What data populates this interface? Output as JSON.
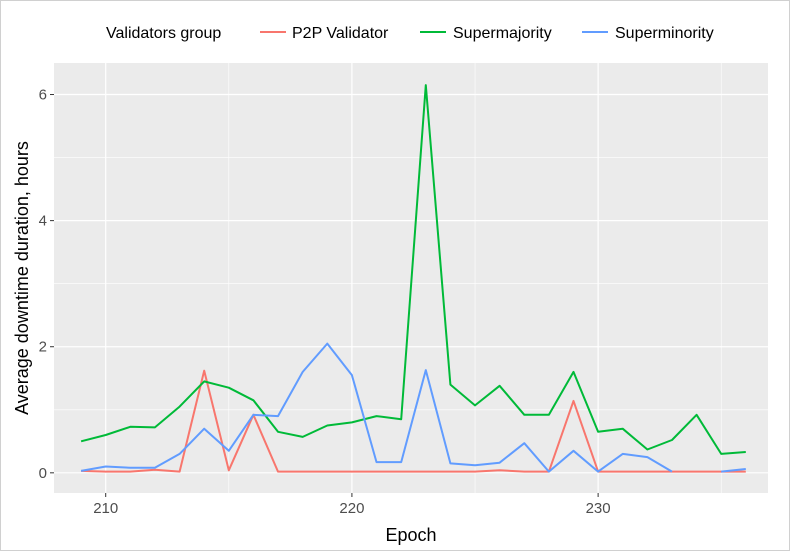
{
  "chart_data": {
    "type": "line",
    "xlabel": "Epoch",
    "ylabel": "Average downtime duration, hours",
    "legend_title": "Validators group",
    "legend_position": "top",
    "grid": true,
    "panel_background": "#ebebeb",
    "xlim": [
      207.9,
      236.9
    ],
    "ylim": [
      -0.32,
      6.5
    ],
    "x_ticks": [
      210,
      220,
      230
    ],
    "y_ticks": [
      0,
      2,
      4,
      6
    ],
    "x_tick_labels": [
      "210",
      "220",
      "230"
    ],
    "y_tick_labels": [
      "0",
      "2",
      "4",
      "6"
    ],
    "series": [
      {
        "name": "P2P Validator",
        "color": "#f8766d",
        "points": [
          [
            209,
            0.03
          ],
          [
            210,
            0.02
          ],
          [
            211,
            0.02
          ],
          [
            212,
            0.05
          ],
          [
            213,
            0.02
          ],
          [
            214,
            1.62
          ],
          [
            215,
            0.04
          ],
          [
            216,
            0.92
          ],
          [
            217,
            0.02
          ],
          [
            218,
            0.02
          ],
          [
            219,
            0.02
          ],
          [
            220,
            0.02
          ],
          [
            221,
            0.02
          ],
          [
            222,
            0.02
          ],
          [
            223,
            0.02
          ],
          [
            224,
            0.02
          ],
          [
            225,
            0.02
          ],
          [
            226,
            0.04
          ],
          [
            227,
            0.02
          ],
          [
            228,
            0.02
          ],
          [
            229,
            1.14
          ],
          [
            230,
            0.02
          ],
          [
            231,
            0.02
          ],
          [
            232,
            0.02
          ],
          [
            233,
            0.02
          ],
          [
            234,
            0.02
          ],
          [
            235,
            0.02
          ],
          [
            236,
            0.02
          ]
        ]
      },
      {
        "name": "Supermajority",
        "color": "#00ba38",
        "points": [
          [
            209,
            0.5
          ],
          [
            210,
            0.6
          ],
          [
            211,
            0.73
          ],
          [
            212,
            0.72
          ],
          [
            213,
            1.05
          ],
          [
            214,
            1.45
          ],
          [
            215,
            1.35
          ],
          [
            216,
            1.15
          ],
          [
            217,
            0.65
          ],
          [
            218,
            0.57
          ],
          [
            219,
            0.75
          ],
          [
            220,
            0.8
          ],
          [
            221,
            0.9
          ],
          [
            222,
            0.85
          ],
          [
            223,
            6.15
          ],
          [
            224,
            1.4
          ],
          [
            225,
            1.07
          ],
          [
            226,
            1.38
          ],
          [
            227,
            0.92
          ],
          [
            228,
            0.92
          ],
          [
            229,
            1.6
          ],
          [
            230,
            0.65
          ],
          [
            231,
            0.7
          ],
          [
            232,
            0.37
          ],
          [
            233,
            0.52
          ],
          [
            234,
            0.92
          ],
          [
            235,
            0.3
          ],
          [
            236,
            0.33
          ]
        ]
      },
      {
        "name": "Superminority",
        "color": "#619cff",
        "points": [
          [
            209,
            0.03
          ],
          [
            210,
            0.1
          ],
          [
            211,
            0.08
          ],
          [
            212,
            0.08
          ],
          [
            213,
            0.3
          ],
          [
            214,
            0.7
          ],
          [
            215,
            0.35
          ],
          [
            216,
            0.92
          ],
          [
            217,
            0.9
          ],
          [
            218,
            1.6
          ],
          [
            219,
            2.05
          ],
          [
            220,
            1.55
          ],
          [
            221,
            0.17
          ],
          [
            222,
            0.17
          ],
          [
            223,
            1.63
          ],
          [
            224,
            0.15
          ],
          [
            225,
            0.12
          ],
          [
            226,
            0.16
          ],
          [
            227,
            0.47
          ],
          [
            228,
            0.02
          ],
          [
            229,
            0.35
          ],
          [
            230,
            0.02
          ],
          [
            231,
            0.3
          ],
          [
            232,
            0.25
          ],
          [
            233,
            0.02
          ],
          [
            234,
            null
          ],
          [
            235,
            0.02
          ],
          [
            236,
            0.06
          ]
        ]
      }
    ]
  }
}
